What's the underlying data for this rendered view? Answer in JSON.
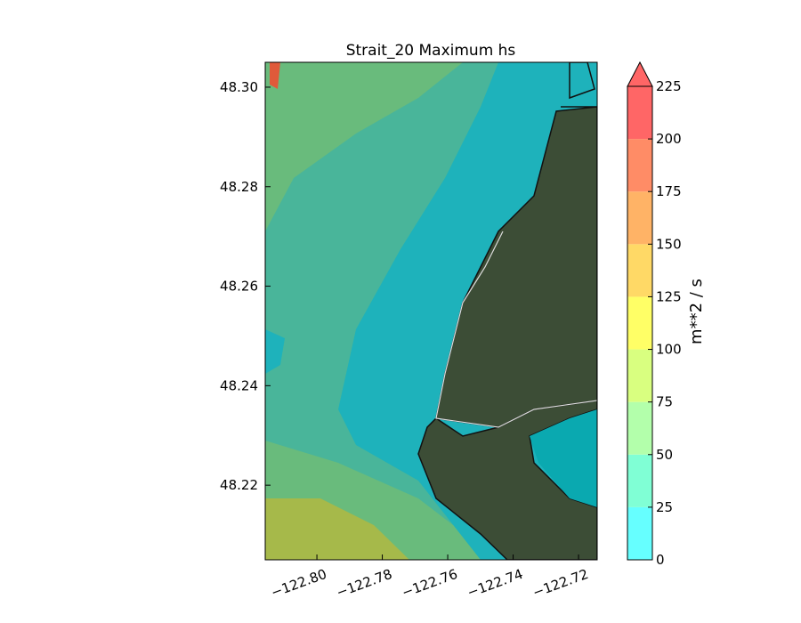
{
  "map": {
    "title": "Strait_20 Maximum hs",
    "xlim": [
      -122.8158,
      -122.7143
    ],
    "ylim": [
      48.205,
      48.305
    ],
    "xticks": [
      {
        "value": -122.8,
        "label": "−122.80"
      },
      {
        "value": -122.78,
        "label": "−122.78"
      },
      {
        "value": -122.76,
        "label": "−122.76"
      },
      {
        "value": -122.74,
        "label": "−122.74"
      },
      {
        "value": -122.72,
        "label": "−122.72"
      }
    ],
    "yticks": [
      48.22,
      48.24,
      48.26,
      48.28,
      {
        "value": 48.3,
        "label": "48.30"
      }
    ],
    "colorbar": {
      "label": "m**2 / s",
      "levels": [
        0,
        25,
        50,
        75,
        100,
        125,
        150,
        175,
        200,
        225
      ],
      "colors": [
        "#66ffff",
        "#80ffd5",
        "#b3ffab",
        "#d9ff80",
        "#ffff66",
        "#ffd966",
        "#ffb366",
        "#ff8c66",
        "#ff6666"
      ],
      "extend_color": "#ff6666"
    }
  }
}
